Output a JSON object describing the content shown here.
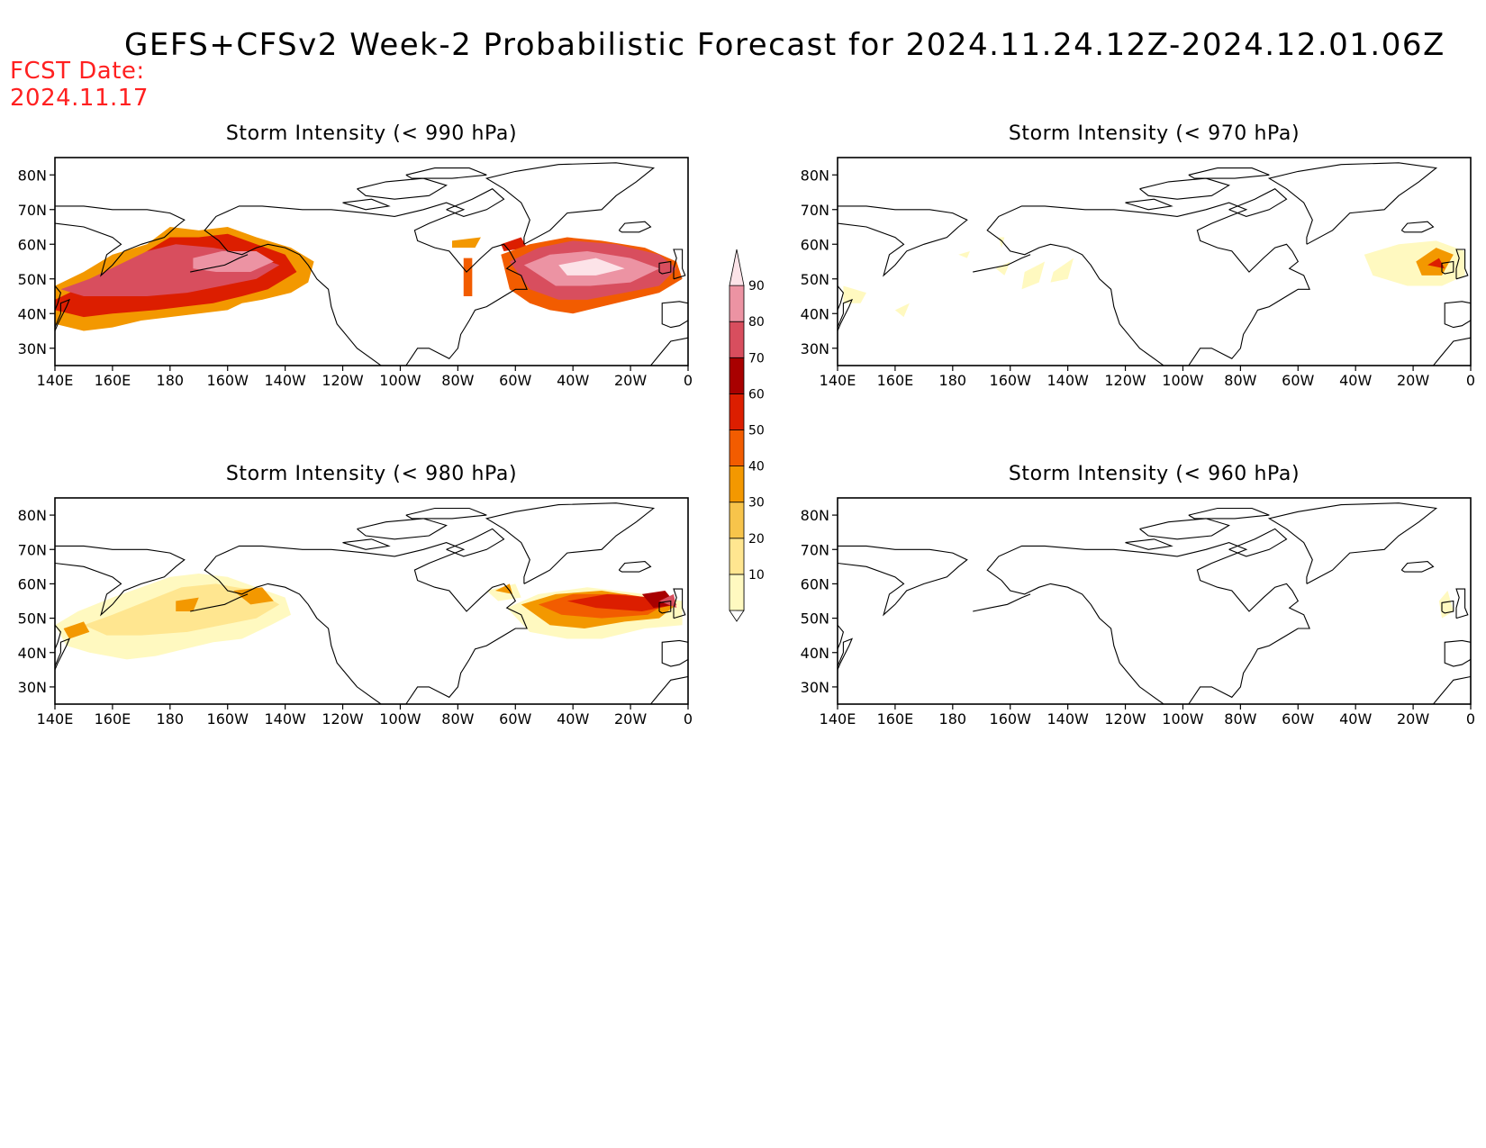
{
  "header": {
    "title": "GEFS+CFSv2 Week-2 Probabilistic Forecast for 2024.11.24.12Z-2024.12.01.06Z",
    "fcst_label": "FCST Date:",
    "fcst_date": "2024.11.17"
  },
  "axes": {
    "lon_ticks": [
      "140E",
      "160E",
      "180",
      "160W",
      "140W",
      "120W",
      "100W",
      "80W",
      "60W",
      "40W",
      "20W",
      "0"
    ],
    "lon_values": [
      140,
      160,
      180,
      200,
      220,
      240,
      260,
      280,
      300,
      320,
      340,
      360
    ],
    "lat_ticks": [
      "80N",
      "70N",
      "60N",
      "50N",
      "40N",
      "30N"
    ],
    "lat_values": [
      80,
      70,
      60,
      50,
      40,
      30
    ],
    "lon_range": [
      140,
      360
    ],
    "lat_range": [
      25,
      85
    ]
  },
  "colorbar": {
    "levels": [
      10,
      20,
      30,
      40,
      50,
      60,
      70,
      80,
      90
    ],
    "labels": [
      "10",
      "20",
      "30",
      "40",
      "50",
      "60",
      "70",
      "80",
      "90"
    ],
    "colors": [
      "#fff9c0",
      "#ffe690",
      "#f7c44b",
      "#f39800",
      "#f25c00",
      "#dc1e00",
      "#a80000",
      "#d84e5e",
      "#ec93a3",
      "#fce3e8"
    ]
  },
  "panels": [
    {
      "title": "Storm Intensity (< 990 hPa)",
      "regions": [
        {
          "level": 3,
          "poly": [
            [
              140,
              48
            ],
            [
              150,
              52
            ],
            [
              160,
              57
            ],
            [
              172,
              60
            ],
            [
              180,
              65
            ],
            [
              190,
              64
            ],
            [
              200,
              65
            ],
            [
              210,
              62
            ],
            [
              222,
              59
            ],
            [
              230,
              55
            ],
            [
              228,
              49
            ],
            [
              222,
              46
            ],
            [
              212,
              44
            ],
            [
              205,
              43
            ],
            [
              200,
              41
            ],
            [
              190,
              40
            ],
            [
              180,
              39
            ],
            [
              170,
              38
            ],
            [
              160,
              36
            ],
            [
              150,
              35
            ],
            [
              140,
              37
            ]
          ]
        },
        {
          "level": 5,
          "poly": [
            [
              140,
              44
            ],
            [
              150,
              48
            ],
            [
              160,
              52
            ],
            [
              170,
              57
            ],
            [
              180,
              62
            ],
            [
              190,
              62
            ],
            [
              200,
              63
            ],
            [
              210,
              60
            ],
            [
              220,
              57
            ],
            [
              224,
              52
            ],
            [
              214,
              47
            ],
            [
              205,
              45
            ],
            [
              195,
              43
            ],
            [
              185,
              42
            ],
            [
              175,
              41
            ],
            [
              160,
              40
            ],
            [
              150,
              39
            ],
            [
              140,
              41
            ]
          ]
        },
        {
          "level": 7,
          "poly": [
            [
              142,
              47
            ],
            [
              152,
              50
            ],
            [
              162,
              54
            ],
            [
              172,
              58
            ],
            [
              182,
              60
            ],
            [
              195,
              59
            ],
            [
              208,
              57
            ],
            [
              218,
              54
            ],
            [
              210,
              50
            ],
            [
              198,
              48
            ],
            [
              186,
              46
            ],
            [
              172,
              45
            ],
            [
              160,
              45
            ],
            [
              150,
              45
            ]
          ]
        },
        {
          "level": 8,
          "poly": [
            [
              188,
              56
            ],
            [
              198,
              58
            ],
            [
              210,
              58
            ],
            [
              216,
              55
            ],
            [
              208,
              52
            ],
            [
              196,
              52
            ],
            [
              188,
              53
            ]
          ]
        },
        {
          "level": 3,
          "poly": [
            [
              278,
              61
            ],
            [
              288,
              62
            ],
            [
              286,
              59
            ],
            [
              278,
              59
            ]
          ]
        },
        {
          "level": 5,
          "poly": [
            [
              295,
              60
            ],
            [
              302,
              62
            ],
            [
              304,
              59
            ],
            [
              296,
              58
            ]
          ]
        },
        {
          "level": 4,
          "poly": [
            [
              282,
              56
            ],
            [
              285,
              56
            ],
            [
              285,
              45
            ],
            [
              282,
              45
            ]
          ]
        },
        {
          "level": 4,
          "poly": [
            [
              295,
              57
            ],
            [
              305,
              60
            ],
            [
              318,
              62
            ],
            [
              330,
              61
            ],
            [
              345,
              59
            ],
            [
              356,
              55
            ],
            [
              358,
              50
            ],
            [
              350,
              46
            ],
            [
              340,
              44
            ],
            [
              330,
              42
            ],
            [
              320,
              40
            ],
            [
              312,
              41
            ],
            [
              305,
              43
            ],
            [
              298,
              47
            ]
          ]
        },
        {
          "level": 7,
          "poly": [
            [
              298,
              55
            ],
            [
              308,
              59
            ],
            [
              320,
              61
            ],
            [
              335,
              60
            ],
            [
              350,
              57
            ],
            [
              356,
              53
            ],
            [
              350,
              48
            ],
            [
              338,
              46
            ],
            [
              325,
              44
            ],
            [
              315,
              44
            ],
            [
              305,
              47
            ]
          ]
        },
        {
          "level": 8,
          "poly": [
            [
              303,
              54
            ],
            [
              312,
              57
            ],
            [
              325,
              58
            ],
            [
              340,
              56
            ],
            [
              350,
              53
            ],
            [
              340,
              49
            ],
            [
              326,
              48
            ],
            [
              314,
              48
            ]
          ]
        },
        {
          "level": 9,
          "poly": [
            [
              315,
              54
            ],
            [
              328,
              56
            ],
            [
              338,
              53
            ],
            [
              328,
              51
            ],
            [
              318,
              51
            ]
          ]
        }
      ]
    },
    {
      "title": "Storm Intensity (< 970 hPa)",
      "regions": [
        {
          "level": 0,
          "poly": [
            [
              142,
              48
            ],
            [
              150,
              46
            ],
            [
              148,
              43
            ],
            [
              142,
              43
            ]
          ]
        },
        {
          "level": 0,
          "poly": [
            [
              160,
              41
            ],
            [
              165,
              43
            ],
            [
              163,
              39
            ]
          ]
        },
        {
          "level": 0,
          "poly": [
            [
              182,
              57
            ],
            [
              186,
              58
            ],
            [
              185,
              56
            ]
          ]
        },
        {
          "level": 0,
          "poly": [
            [
              195,
              53
            ],
            [
              200,
              55
            ],
            [
              198,
              51
            ]
          ]
        },
        {
          "level": 0,
          "poly": [
            [
              205,
              52
            ],
            [
              212,
              55
            ],
            [
              210,
              49
            ],
            [
              204,
              47
            ]
          ]
        },
        {
          "level": 0,
          "poly": [
            [
              215,
              52
            ],
            [
              222,
              56
            ],
            [
              220,
              50
            ],
            [
              214,
              49
            ]
          ]
        },
        {
          "level": 0,
          "poly": [
            [
              196,
              62
            ],
            [
              198,
              62
            ],
            [
              197,
              59
            ]
          ]
        },
        {
          "level": 0,
          "poly": [
            [
              323,
              57
            ],
            [
              335,
              60
            ],
            [
              348,
              61
            ],
            [
              358,
              58
            ],
            [
              358,
              51
            ],
            [
              350,
              48
            ],
            [
              338,
              48
            ],
            [
              326,
              51
            ]
          ]
        },
        {
          "level": 3,
          "poly": [
            [
              341,
              55
            ],
            [
              348,
              59
            ],
            [
              354,
              57
            ],
            [
              350,
              51
            ],
            [
              343,
              51
            ]
          ]
        },
        {
          "level": 5,
          "poly": [
            [
              345,
              54
            ],
            [
              349,
              56
            ],
            [
              351,
              53
            ]
          ]
        }
      ]
    },
    {
      "title": "Storm Intensity (< 980 hPa)",
      "regions": [
        {
          "level": 0,
          "poly": [
            [
              140,
              48
            ],
            [
              148,
              52
            ],
            [
              160,
              56
            ],
            [
              170,
              59
            ],
            [
              180,
              62
            ],
            [
              190,
              63
            ],
            [
              200,
              62
            ],
            [
              210,
              59
            ],
            [
              220,
              56
            ],
            [
              222,
              51
            ],
            [
              215,
              48
            ],
            [
              205,
              44
            ],
            [
              195,
              43
            ],
            [
              185,
              41
            ],
            [
              175,
              39
            ],
            [
              165,
              38
            ],
            [
              152,
              40
            ],
            [
              144,
              42
            ]
          ]
        },
        {
          "level": 1,
          "poly": [
            [
              150,
              48
            ],
            [
              160,
              51
            ],
            [
              172,
              55
            ],
            [
              184,
              59
            ],
            [
              196,
              60
            ],
            [
              210,
              58
            ],
            [
              218,
              54
            ],
            [
              210,
              50
            ],
            [
              198,
              48
            ],
            [
              186,
              46
            ],
            [
              170,
              45
            ],
            [
              158,
              45
            ]
          ]
        },
        {
          "level": 3,
          "poly": [
            [
              143,
              47
            ],
            [
              150,
              49
            ],
            [
              152,
              46
            ],
            [
              145,
              44
            ]
          ]
        },
        {
          "level": 3,
          "poly": [
            [
              202,
              58
            ],
            [
              212,
              59
            ],
            [
              216,
              55
            ],
            [
              208,
              54
            ]
          ]
        },
        {
          "level": 3,
          "poly": [
            [
              182,
              55
            ],
            [
              190,
              56
            ],
            [
              188,
              52
            ],
            [
              182,
              52
            ]
          ]
        },
        {
          "level": 0,
          "poly": [
            [
              290,
              58
            ],
            [
              300,
              60
            ],
            [
              302,
              56
            ],
            [
              294,
              55
            ]
          ]
        },
        {
          "level": 3,
          "poly": [
            [
              293,
              58
            ],
            [
              298,
              60
            ],
            [
              299,
              57
            ]
          ]
        },
        {
          "level": 0,
          "poly": [
            [
              297,
              53
            ],
            [
              308,
              57
            ],
            [
              325,
              59
            ],
            [
              345,
              57
            ],
            [
              358,
              55
            ],
            [
              358,
              48
            ],
            [
              345,
              47
            ],
            [
              330,
              44
            ],
            [
              318,
              44
            ],
            [
              305,
              46
            ]
          ]
        },
        {
          "level": 3,
          "poly": [
            [
              302,
              54
            ],
            [
              314,
              57
            ],
            [
              330,
              58
            ],
            [
              345,
              56
            ],
            [
              356,
              54
            ],
            [
              350,
              50
            ],
            [
              338,
              49
            ],
            [
              324,
              47
            ],
            [
              312,
              48
            ]
          ]
        },
        {
          "level": 4,
          "poly": [
            [
              308,
              54
            ],
            [
              320,
              57
            ],
            [
              338,
              57
            ],
            [
              354,
              55
            ],
            [
              346,
              51
            ],
            [
              330,
              50
            ],
            [
              316,
              51
            ]
          ]
        },
        {
          "level": 5,
          "poly": [
            [
              318,
              55
            ],
            [
              332,
              57
            ],
            [
              348,
              56
            ],
            [
              356,
              54
            ],
            [
              344,
              52
            ],
            [
              328,
              53
            ]
          ]
        },
        {
          "level": 6,
          "poly": [
            [
              344,
              57
            ],
            [
              352,
              58
            ],
            [
              356,
              54
            ],
            [
              348,
              53
            ]
          ]
        },
        {
          "level": 7,
          "poly": [
            [
              350,
              55
            ],
            [
              355,
              57
            ],
            [
              356,
              53
            ]
          ]
        }
      ]
    },
    {
      "title": "Storm Intensity (< 960 hPa)",
      "regions": [
        {
          "level": 0,
          "poly": [
            [
              349,
              55
            ],
            [
              352,
              58
            ],
            [
              354,
              52
            ],
            [
              350,
              50
            ]
          ]
        }
      ]
    }
  ]
}
